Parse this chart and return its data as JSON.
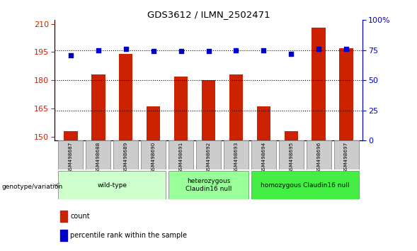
{
  "title": "GDS3612 / ILMN_2502471",
  "samples": [
    "GSM498687",
    "GSM498688",
    "GSM498689",
    "GSM498690",
    "GSM498691",
    "GSM498692",
    "GSM498693",
    "GSM498694",
    "GSM498695",
    "GSM498696",
    "GSM498697"
  ],
  "bar_values": [
    153,
    183,
    194,
    166,
    182,
    180,
    183,
    166,
    153,
    208,
    197
  ],
  "percentile_values": [
    71,
    75,
    76,
    74,
    74,
    74,
    75,
    75,
    72,
    76,
    76
  ],
  "ylim_left": [
    148,
    212
  ],
  "ylim_right": [
    0,
    100
  ],
  "yticks_left": [
    150,
    165,
    180,
    195,
    210
  ],
  "yticks_right": [
    0,
    25,
    50,
    75,
    100
  ],
  "bar_color": "#cc2200",
  "dot_color": "#0000cc",
  "bg_color": "#ffffff",
  "plot_bg": "#ffffff",
  "groups": [
    {
      "label": "wild-type",
      "start": 0,
      "end": 3,
      "color": "#ccffcc"
    },
    {
      "label": "heterozygous\nClaudin16 null",
      "start": 4,
      "end": 6,
      "color": "#99ff99"
    },
    {
      "label": "homozygous Claudin16 null",
      "start": 7,
      "end": 10,
      "color": "#44ee44"
    }
  ],
  "legend_count_label": "count",
  "legend_pct_label": "percentile rank within the sample",
  "tick_label_color_left": "#cc2200",
  "tick_label_color_right": "#0000cc",
  "sample_bg_color": "#cccccc",
  "figsize": [
    5.89,
    3.54
  ],
  "dpi": 100
}
